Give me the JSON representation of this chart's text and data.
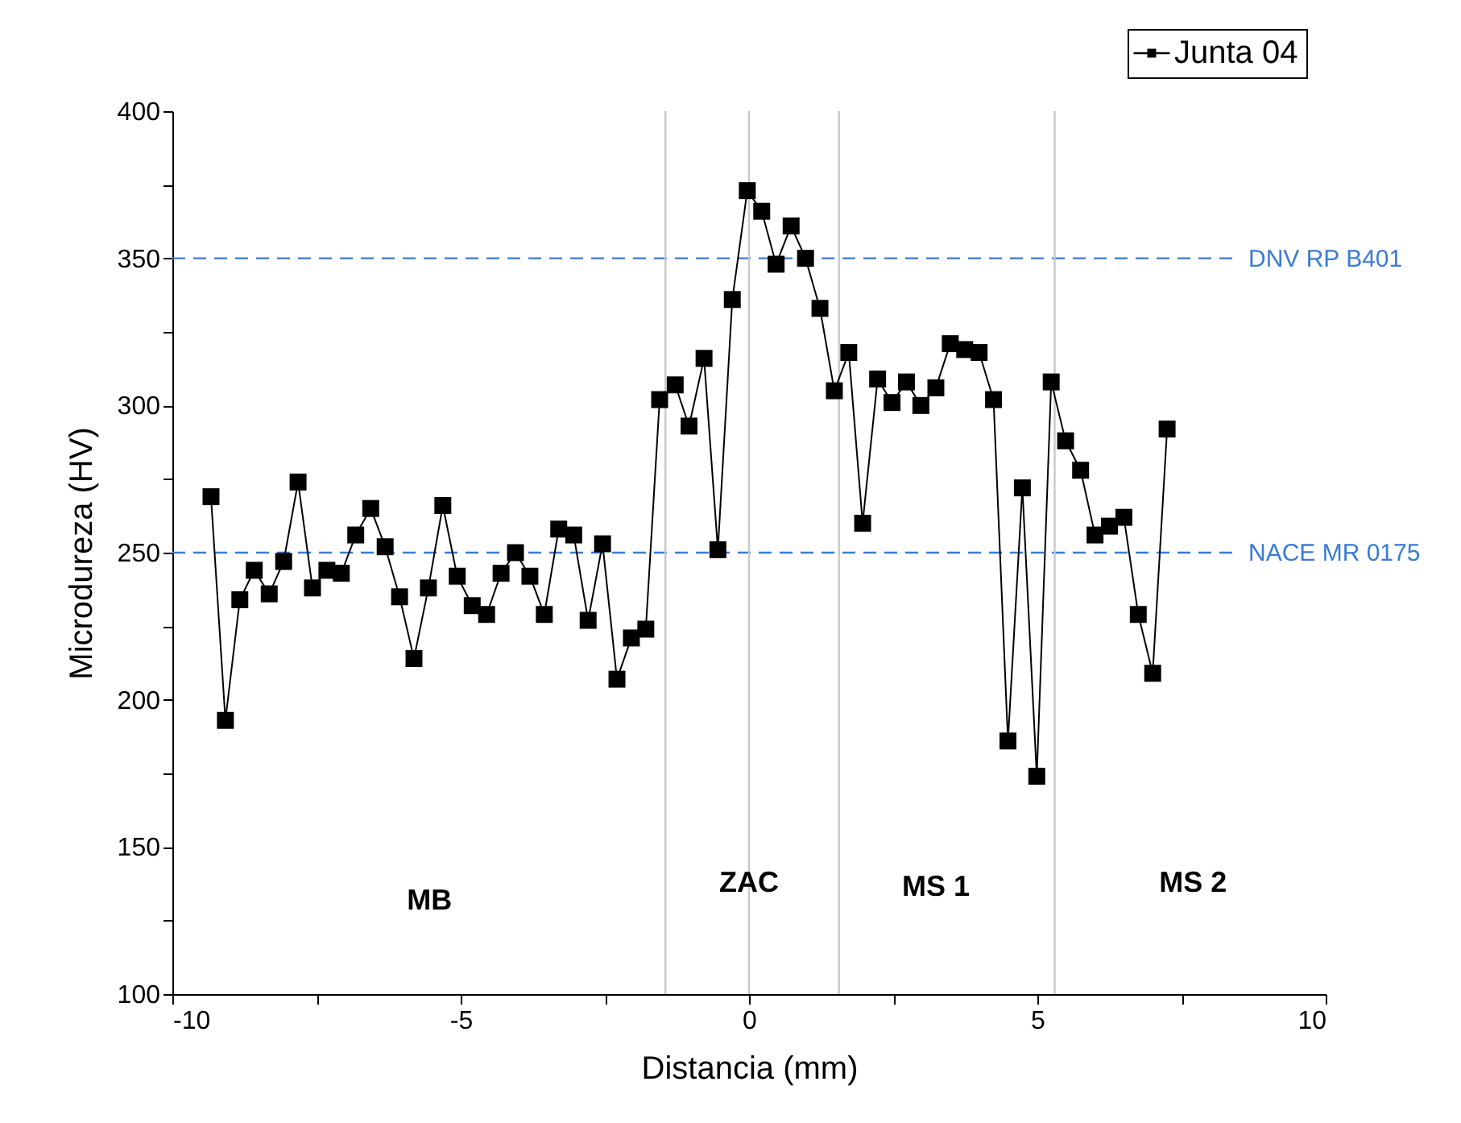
{
  "chart_data": {
    "type": "line",
    "xlabel": "Distancia (mm)",
    "ylabel": "Microdureza (HV)",
    "x": [
      -9.33,
      -9.08,
      -8.83,
      -8.58,
      -8.32,
      -8.07,
      -7.82,
      -7.57,
      -7.32,
      -7.07,
      -6.82,
      -6.56,
      -6.31,
      -6.06,
      -5.81,
      -5.56,
      -5.31,
      -5.06,
      -4.8,
      -4.55,
      -4.3,
      -4.05,
      -3.8,
      -3.55,
      -3.3,
      -3.04,
      -2.79,
      -2.54,
      -2.29,
      -2.04,
      -1.79,
      -1.55,
      -1.28,
      -1.04,
      -0.78,
      -0.54,
      -0.29,
      -0.03,
      0.22,
      0.47,
      0.73,
      0.98,
      1.23,
      1.48,
      1.73,
      1.97,
      2.23,
      2.48,
      2.73,
      2.98,
      3.24,
      3.49,
      3.74,
      3.99,
      4.24,
      4.49,
      4.74,
      4.99,
      5.24,
      5.49,
      5.75,
      6.0,
      6.25,
      6.5,
      6.75,
      7.0,
      7.25
    ],
    "series": [
      {
        "name": "Junta 04",
        "color": "#000000",
        "values": [
          269,
          193,
          234,
          244,
          236,
          247,
          274,
          238,
          244,
          243,
          256,
          265,
          252,
          235,
          214,
          238,
          266,
          242,
          232,
          229,
          243,
          250,
          242,
          229,
          258,
          256,
          227,
          253,
          207,
          221,
          224,
          302,
          307,
          293,
          316,
          251,
          336,
          373,
          366,
          348,
          361,
          350,
          333,
          305,
          318,
          260,
          309,
          301,
          308,
          300,
          306,
          321,
          319,
          318,
          302,
          186,
          272,
          174,
          308,
          288,
          278,
          256,
          259,
          262,
          229,
          209,
          292
        ]
      }
    ],
    "xlim": [
      -10,
      10
    ],
    "xticks": [
      -10,
      {
        "value": -7.5,
        "label": null
      },
      -5,
      {
        "value": -2.5,
        "label": null
      },
      0,
      {
        "value": 2.5,
        "label": null
      },
      5,
      {
        "value": 7.5,
        "label": null
      },
      10
    ],
    "ylim": [
      100,
      400
    ],
    "yticks": [
      100,
      {
        "value": 125,
        "label": null
      },
      150,
      {
        "value": 175,
        "label": null
      },
      200,
      {
        "value": 225,
        "label": null
      },
      250,
      {
        "value": 275,
        "label": null
      },
      300,
      {
        "value": 325,
        "label": null
      },
      350,
      {
        "value": 375,
        "label": null
      },
      400
    ],
    "marker": "square",
    "line_style": "solid",
    "grid": false,
    "legend": "top right",
    "ref_lines": [
      {
        "axis": "y",
        "value": 350,
        "label": "DNV RP B401",
        "color": "#3a7bd5",
        "line_style": "dashed"
      },
      {
        "axis": "y",
        "value": 250,
        "label": "NACE MR 0175",
        "color": "#3a7bd5",
        "line_style": "dashed"
      },
      {
        "axis": "x",
        "value": -1.45,
        "color": "#c8c8c8",
        "line_style": "solid"
      },
      {
        "axis": "x",
        "value": 0,
        "color": "#c8c8c8",
        "line_style": "solid"
      },
      {
        "axis": "x",
        "value": 1.56,
        "color": "#c8c8c8",
        "line_style": "solid"
      },
      {
        "axis": "x",
        "value": 5.3,
        "color": "#c8c8c8",
        "line_style": "solid"
      }
    ],
    "annotations": [
      "MB",
      "ZAC",
      "MS 1",
      "MS 2"
    ]
  }
}
